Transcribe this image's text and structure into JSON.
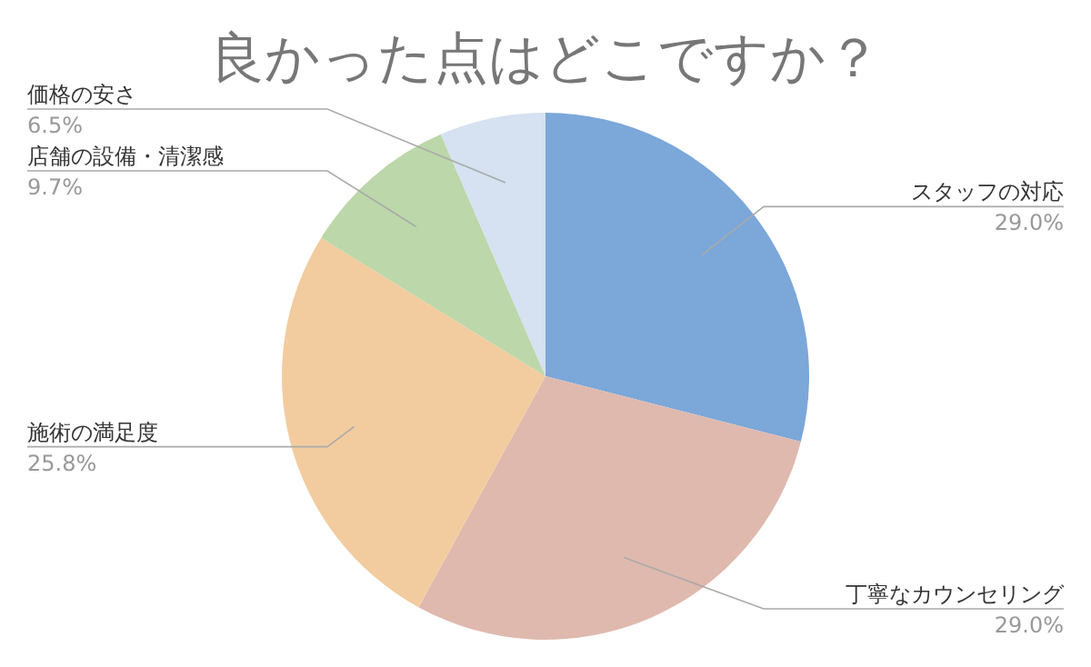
{
  "chart_data": {
    "type": "pie",
    "title": "良かった点はどこですか？",
    "categories": [
      "スタッフの対応",
      "丁寧なカウンセリング",
      "施術の満足度",
      "店舗の設備・清潔感",
      "価格の安さ"
    ],
    "values": [
      29.0,
      29.0,
      25.8,
      9.7,
      6.5
    ],
    "value_labels": [
      "29.0%",
      "29.0%",
      "25.8%",
      "9.7%",
      "6.5%"
    ],
    "colors": [
      "#7ba7d9",
      "#dfb9ae",
      "#f2cc9f",
      "#bcd7a9",
      "#d6e1f1"
    ],
    "legend": false
  }
}
